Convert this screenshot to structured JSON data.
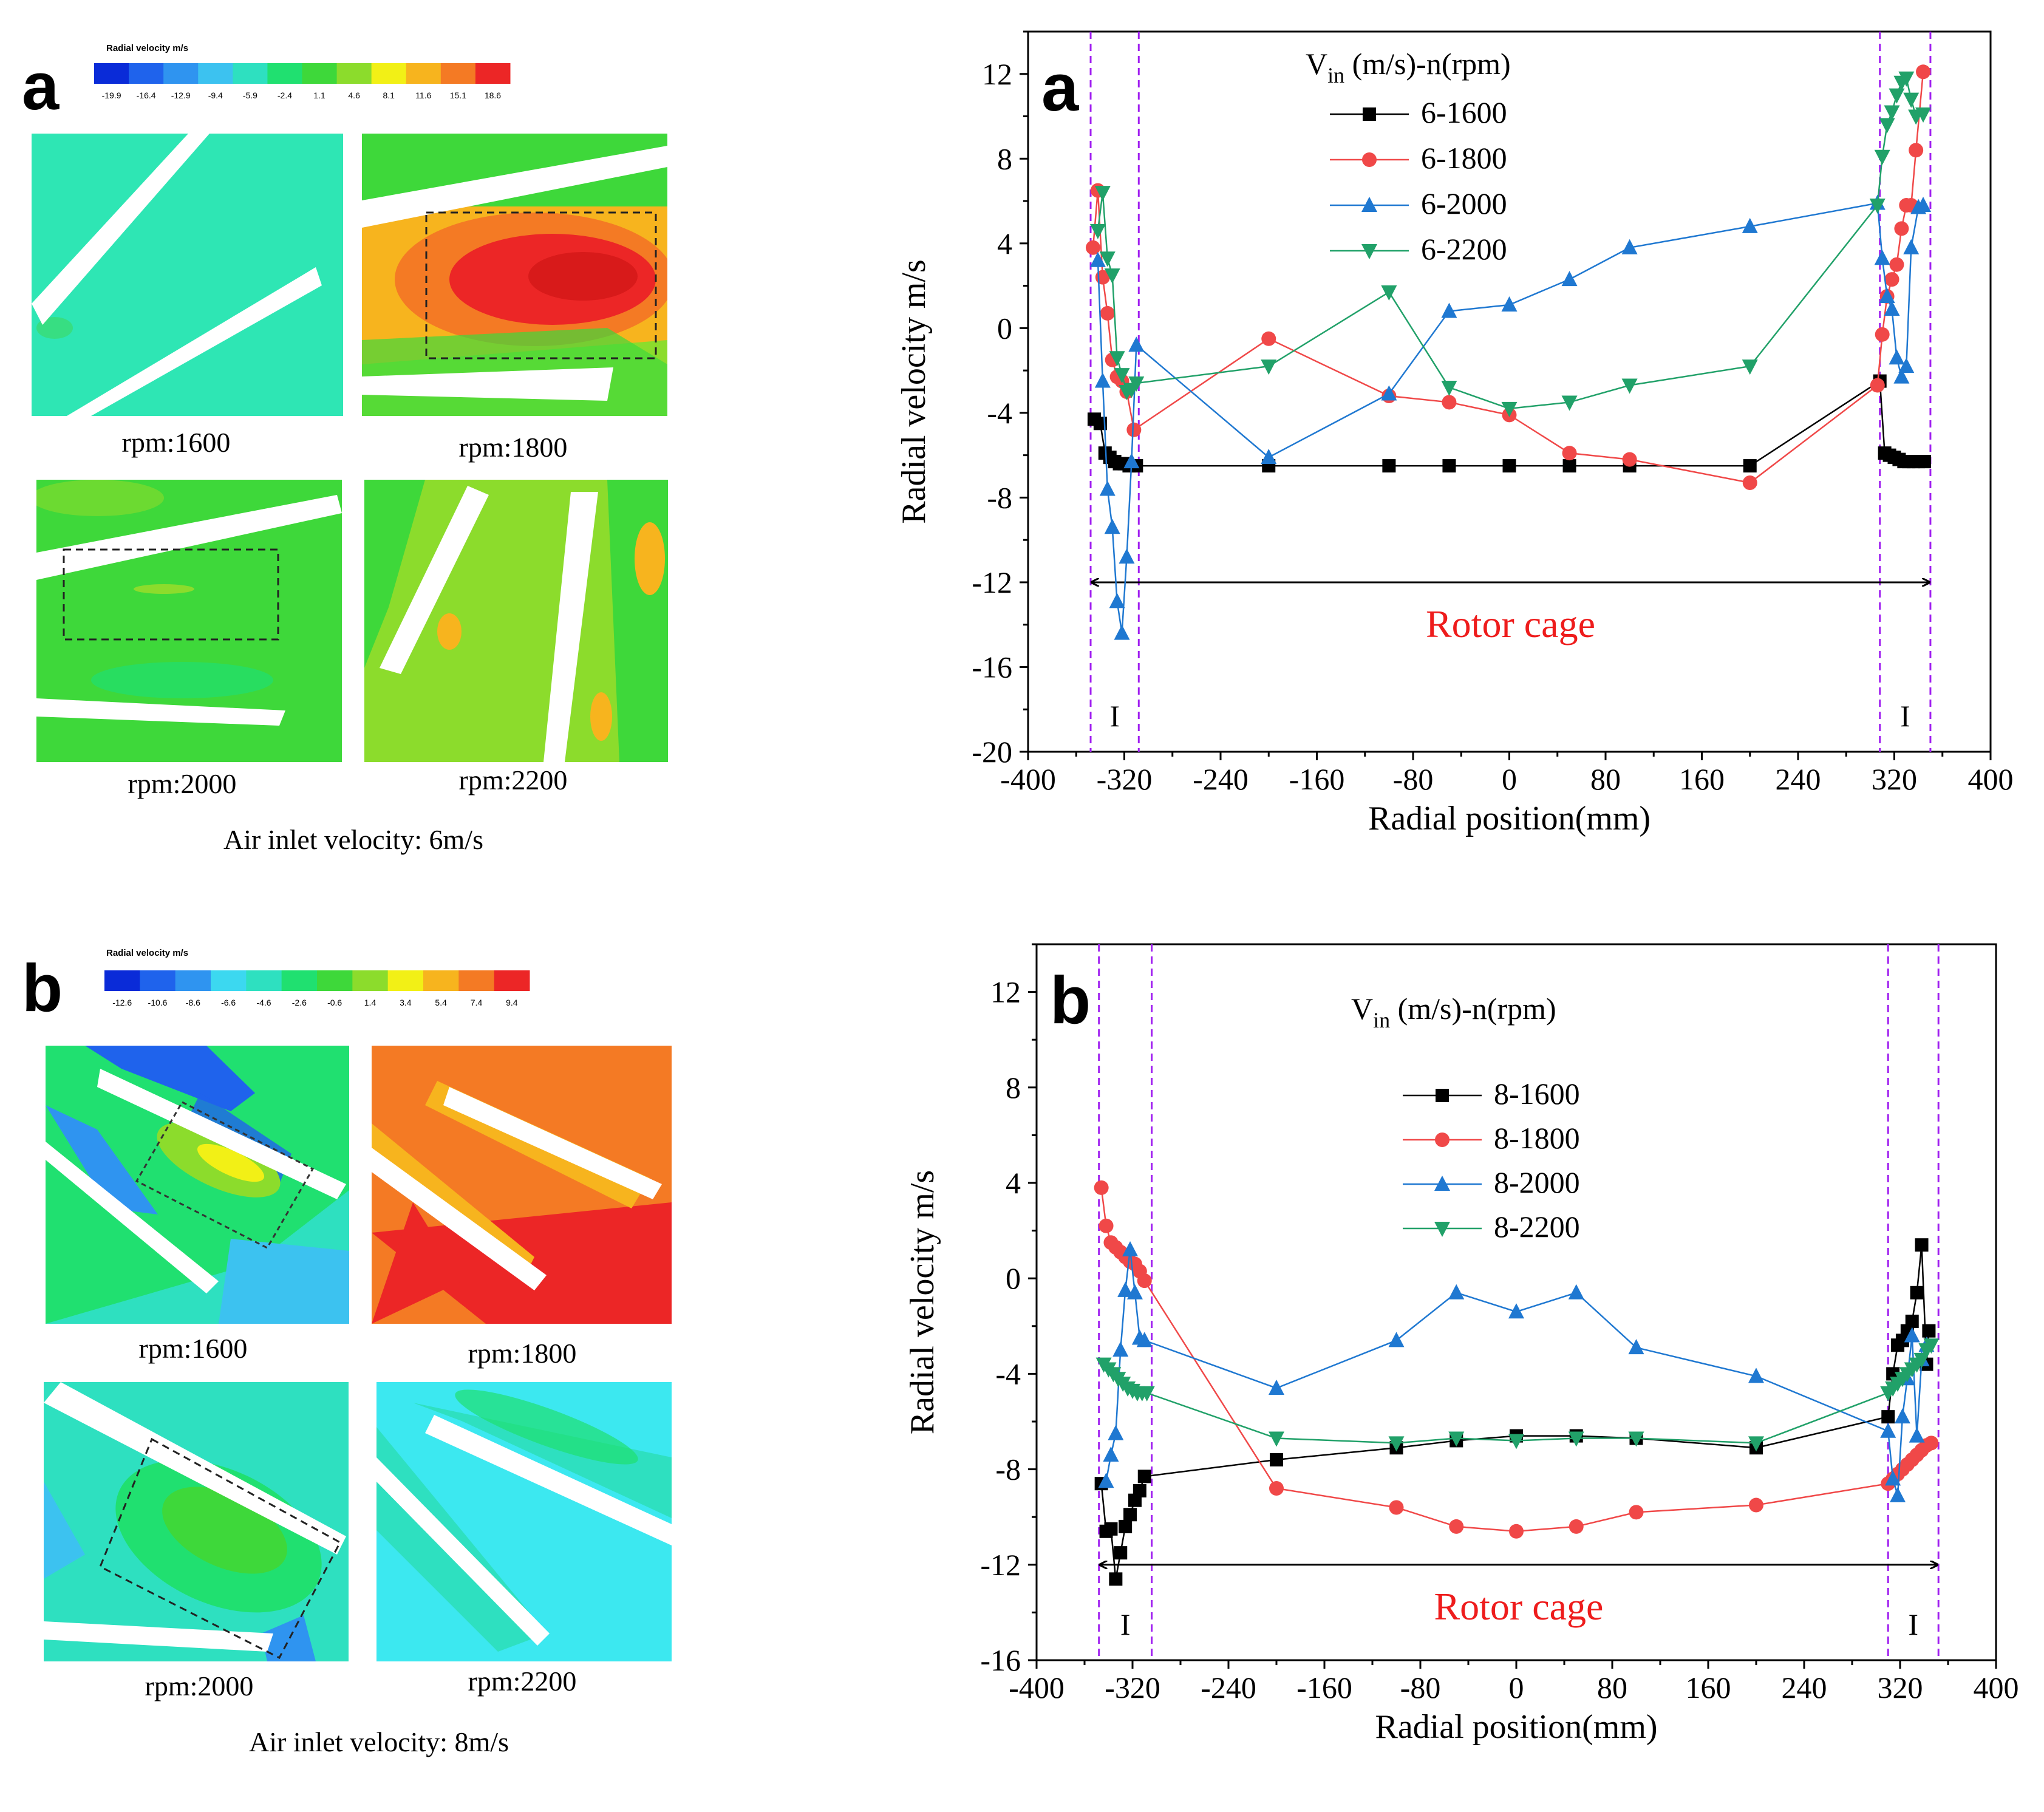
{
  "left_panels": [
    {
      "letter": "a",
      "colorbar_title": "Radial  velocity    m/s",
      "colorbar_ticks": [
        "-19.9",
        "-16.4",
        "-12.9",
        "-9.4",
        "-5.9",
        "-2.4",
        "1.1",
        "4.6",
        "8.1",
        "11.6",
        "15.1",
        "18.6"
      ],
      "colorbar_colors": [
        "#0a2bd8",
        "#1f63ec",
        "#2f94f0",
        "#3cc2f0",
        "#2ee0c0",
        "#20e070",
        "#3ed83a",
        "#8cdc2c",
        "#f2f016",
        "#f7b41e",
        "#f47a24",
        "#ec2626"
      ],
      "captions": [
        "rpm:1600",
        "rpm:1800",
        "rpm:2000",
        "rpm:2200"
      ],
      "footer": "Air inlet velocity: 6m/s"
    },
    {
      "letter": "b",
      "colorbar_title": "Radial velocity m/s",
      "colorbar_ticks": [
        "-12.6",
        "-10.6",
        "-8.6",
        "-6.6",
        "-4.6",
        "-2.6",
        "-0.6",
        "1.4",
        "3.4",
        "5.4",
        "7.4",
        "9.4"
      ],
      "colorbar_colors": [
        "#0a2bd8",
        "#1f63ec",
        "#2f94f0",
        "#3cd8f0",
        "#2ee0c0",
        "#20e070",
        "#3ed83a",
        "#8cdc2c",
        "#f2f016",
        "#f7b41e",
        "#f47a24",
        "#ec2626"
      ],
      "captions": [
        "rpm:1600",
        "rpm:1800",
        "rpm:2000",
        "rpm:2200"
      ],
      "footer": "Air inlet velocity: 8m/s"
    }
  ],
  "chart_data": [
    {
      "type": "line",
      "letter": "a",
      "legend_title": "V_in (m/s)-n(rpm)",
      "xlabel": "Radial position(mm)",
      "ylabel": "Radial velocity m/s",
      "xlim": [
        -400,
        400
      ],
      "ylim": [
        -20,
        14
      ],
      "xticks": [
        -400,
        -320,
        -240,
        -160,
        -80,
        0,
        80,
        160,
        240,
        320,
        400
      ],
      "yticks": [
        -20,
        -16,
        -12,
        -8,
        -4,
        0,
        4,
        8,
        12
      ],
      "region_lines": [
        -348,
        -308,
        308,
        350
      ],
      "region_label": "I",
      "annotation": "Rotor cage",
      "arrow_y": -12,
      "series": [
        {
          "name": "6-1600",
          "color": "#000000",
          "marker": "square",
          "x": [
            -345,
            -340,
            -336,
            -332,
            -328,
            -324,
            -320,
            -316,
            -310,
            -200,
            -100,
            -50,
            0,
            50,
            100,
            200,
            308,
            312,
            316,
            320,
            324,
            328,
            332,
            336,
            340,
            345
          ],
          "y": [
            -4.3,
            -4.5,
            -5.9,
            -6.1,
            -6.3,
            -6.4,
            -6.4,
            -6.5,
            -6.5,
            -6.5,
            -6.5,
            -6.5,
            -6.5,
            -6.5,
            -6.5,
            -6.5,
            -2.5,
            -5.9,
            -6.0,
            -6.1,
            -6.2,
            -6.3,
            -6.3,
            -6.3,
            -6.3,
            -6.3
          ]
        },
        {
          "name": "6-1800",
          "color": "#f04848",
          "marker": "circle",
          "x": [
            -346,
            -342,
            -338,
            -334,
            -330,
            -326,
            -322,
            -318,
            -312,
            -200,
            -100,
            -50,
            0,
            50,
            100,
            200,
            306,
            310,
            314,
            318,
            322,
            326,
            330,
            334,
            338,
            344
          ],
          "y": [
            3.8,
            6.5,
            2.4,
            0.7,
            -1.5,
            -2.3,
            -2.5,
            -3.0,
            -4.8,
            -0.5,
            -3.2,
            -3.5,
            -4.1,
            -5.9,
            -6.2,
            -7.3,
            -2.7,
            -0.3,
            1.5,
            2.3,
            3.0,
            4.7,
            5.8,
            5.8,
            8.4,
            12.1
          ]
        },
        {
          "name": "6-2000",
          "color": "#1f78d1",
          "marker": "triangle-up",
          "x": [
            -342,
            -338,
            -334,
            -330,
            -326,
            -322,
            -318,
            -314,
            -310,
            -200,
            -100,
            -50,
            0,
            50,
            100,
            200,
            306,
            310,
            314,
            318,
            322,
            326,
            330,
            334,
            340,
            344
          ],
          "y": [
            3.2,
            -2.5,
            -7.6,
            -9.4,
            -12.9,
            -14.4,
            -10.8,
            -6.3,
            -0.8,
            -6.1,
            -3.1,
            0.8,
            1.1,
            2.3,
            3.8,
            4.8,
            5.9,
            3.3,
            1.5,
            0.9,
            -1.4,
            -2.3,
            -1.8,
            3.8,
            5.7,
            5.8
          ]
        },
        {
          "name": "6-2200",
          "color": "#21a169",
          "marker": "triangle-down",
          "x": [
            -342,
            -338,
            -334,
            -330,
            -326,
            -322,
            -318,
            -314,
            -310,
            -200,
            -100,
            -50,
            0,
            50,
            100,
            200,
            306,
            310,
            314,
            318,
            322,
            326,
            330,
            334,
            338,
            344
          ],
          "y": [
            4.6,
            6.4,
            3.3,
            2.5,
            -1.4,
            -2.2,
            -3.0,
            -2.9,
            -2.6,
            -1.8,
            1.7,
            -2.8,
            -3.8,
            -3.5,
            -2.7,
            -1.8,
            5.8,
            8.1,
            9.6,
            10.2,
            11.0,
            11.6,
            11.8,
            10.8,
            10.0,
            10.1
          ]
        }
      ]
    },
    {
      "type": "line",
      "letter": "b",
      "legend_title": "V_in (m/s)-n(rpm)",
      "xlabel": "Radial position(mm)",
      "ylabel": "Radial velocity m/s",
      "xlim": [
        -400,
        400
      ],
      "ylim": [
        -16,
        14
      ],
      "xticks": [
        -400,
        -320,
        -240,
        -160,
        -80,
        0,
        80,
        160,
        240,
        320,
        400
      ],
      "yticks": [
        -16,
        -12,
        -8,
        -4,
        0,
        4,
        8,
        12
      ],
      "region_lines": [
        -348,
        -304,
        310,
        352
      ],
      "region_label": "I",
      "annotation": "Rotor cage",
      "arrow_y": -12,
      "series": [
        {
          "name": "8-1600",
          "color": "#000000",
          "marker": "square",
          "x": [
            -346,
            -342,
            -338,
            -334,
            -330,
            -326,
            -322,
            -318,
            -314,
            -310,
            -200,
            -100,
            -50,
            0,
            50,
            100,
            200,
            310,
            314,
            318,
            322,
            326,
            330,
            334,
            338,
            342,
            344
          ],
          "y": [
            -8.6,
            -10.6,
            -10.5,
            -12.6,
            -11.5,
            -10.4,
            -9.9,
            -9.3,
            -8.9,
            -8.3,
            -7.6,
            -7.1,
            -6.8,
            -6.6,
            -6.6,
            -6.7,
            -7.1,
            -5.8,
            -4.0,
            -2.8,
            -2.6,
            -2.2,
            -1.8,
            -0.6,
            1.4,
            -3.6,
            -2.2
          ]
        },
        {
          "name": "8-1800",
          "color": "#f04848",
          "marker": "circle",
          "x": [
            -346,
            -342,
            -338,
            -334,
            -330,
            -326,
            -322,
            -318,
            -314,
            -310,
            -200,
            -100,
            -50,
            0,
            50,
            100,
            200,
            310,
            314,
            318,
            322,
            326,
            330,
            334,
            338,
            342,
            346
          ],
          "y": [
            3.8,
            2.2,
            1.5,
            1.3,
            1.1,
            0.9,
            0.7,
            0.6,
            0.3,
            -0.1,
            -8.8,
            -9.6,
            -10.4,
            -10.6,
            -10.4,
            -9.8,
            -9.5,
            -8.6,
            -8.4,
            -8.2,
            -8.0,
            -7.8,
            -7.6,
            -7.4,
            -7.2,
            -7.0,
            -6.9
          ]
        },
        {
          "name": "8-2000",
          "color": "#1f78d1",
          "marker": "triangle-up",
          "x": [
            -342,
            -338,
            -334,
            -330,
            -326,
            -322,
            -318,
            -314,
            -310,
            -200,
            -100,
            -50,
            0,
            50,
            100,
            200,
            310,
            314,
            318,
            322,
            326,
            330,
            334,
            338,
            342
          ],
          "y": [
            -8.5,
            -7.4,
            -6.5,
            -3.0,
            -0.5,
            1.2,
            -0.6,
            -2.5,
            -2.6,
            -4.6,
            -2.6,
            -0.6,
            -1.4,
            -0.6,
            -2.9,
            -4.1,
            -6.4,
            -8.4,
            -9.1,
            -5.8,
            -4.2,
            -2.4,
            -6.6,
            -3.4,
            -2.8
          ]
        },
        {
          "name": "8-2200",
          "color": "#21a169",
          "marker": "triangle-down",
          "x": [
            -344,
            -340,
            -336,
            -332,
            -328,
            -324,
            -320,
            -316,
            -312,
            -308,
            -200,
            -100,
            -50,
            0,
            50,
            100,
            200,
            310,
            314,
            318,
            322,
            326,
            330,
            334,
            338,
            342,
            346
          ],
          "y": [
            -3.6,
            -3.8,
            -4.0,
            -4.2,
            -4.4,
            -4.6,
            -4.7,
            -4.8,
            -4.8,
            -4.8,
            -6.7,
            -6.9,
            -6.7,
            -6.8,
            -6.7,
            -6.7,
            -6.9,
            -4.8,
            -4.6,
            -4.4,
            -4.2,
            -4.0,
            -3.8,
            -3.6,
            -3.4,
            -3.0,
            -2.8
          ]
        }
      ]
    }
  ]
}
